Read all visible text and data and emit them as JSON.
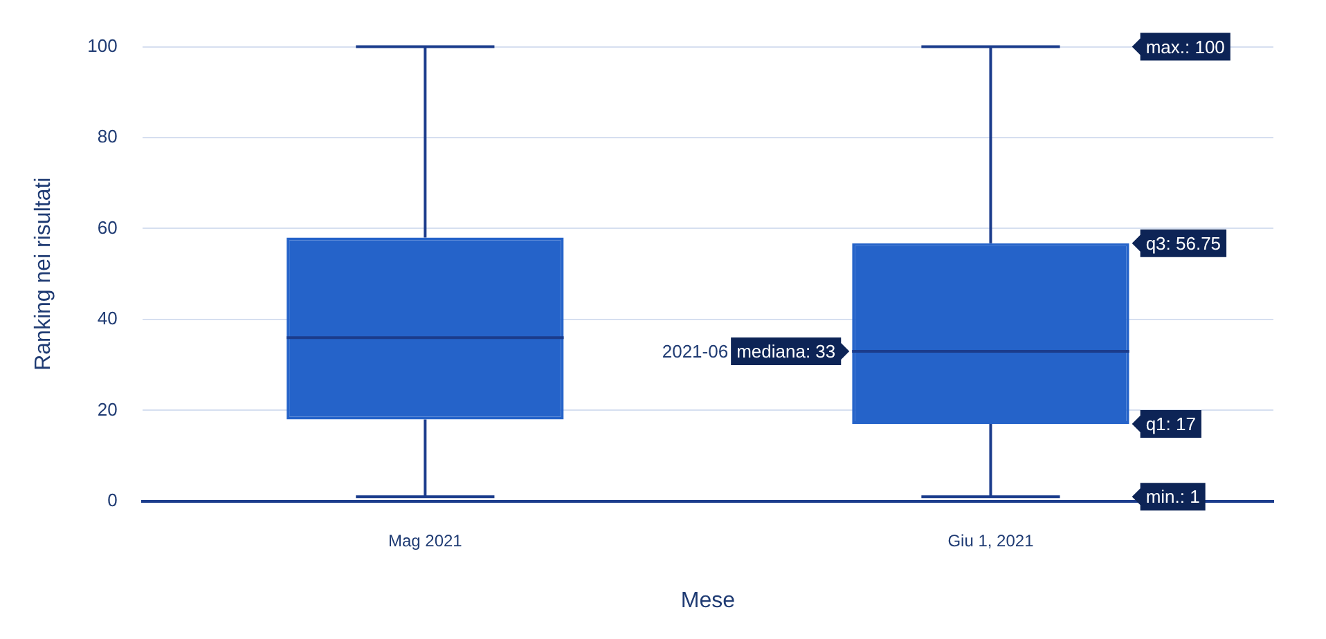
{
  "chart_data": {
    "type": "box",
    "xlabel": "Mese",
    "ylabel": "Ranking nei risultati",
    "categories": [
      "Mag 2021",
      "Giu 1, 2021"
    ],
    "series": [
      {
        "color": "#2563c9",
        "boxes": [
          {
            "low": 1,
            "q1": 18,
            "median": 36,
            "q3": 58,
            "high": 100
          },
          {
            "low": 1,
            "q1": 17,
            "median": 33,
            "q3": 56.75,
            "high": 100
          }
        ]
      }
    ],
    "ylim": [
      0,
      100
    ],
    "yticks": [
      0,
      20,
      40,
      60,
      80,
      100
    ],
    "grid": "y",
    "legend": false,
    "annotations": [
      "max.: 100",
      "q3: 56.75",
      "mediana: 33",
      "2021-06",
      "q1: 17",
      "min.: 1"
    ]
  }
}
